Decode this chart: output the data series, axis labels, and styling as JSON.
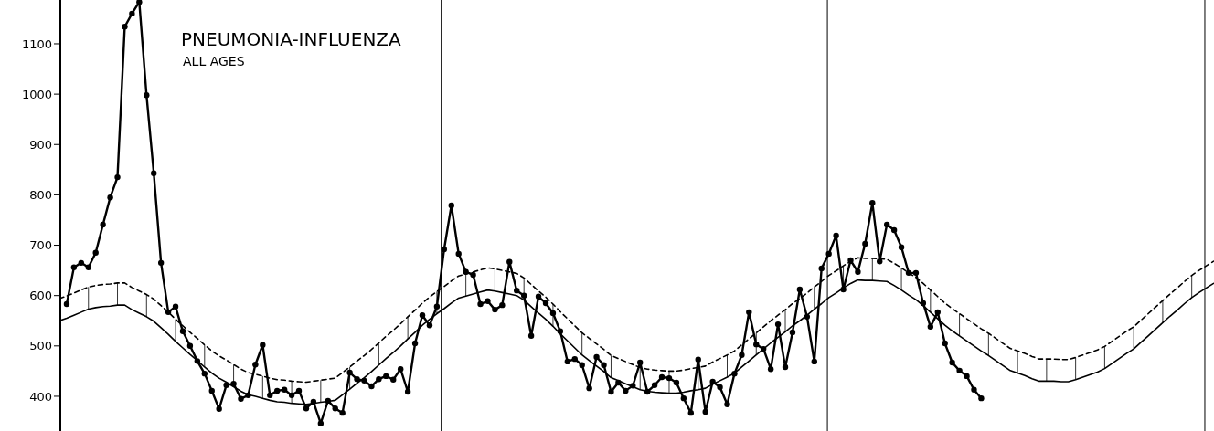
{
  "chart_data": {
    "type": "line",
    "title": "PNEUMONIA-INFLUENZA",
    "subtitle": "ALL AGES",
    "categories": [
      null,
      null,
      null,
      null,
      null,
      null,
      null,
      null,
      null,
      null,
      null,
      null,
      null,
      null,
      null,
      null,
      null,
      null,
      null,
      null,
      null,
      null,
      null,
      null,
      null,
      null,
      null,
      null,
      null,
      null,
      null,
      null,
      null,
      null,
      null,
      null,
      null,
      null,
      null,
      null,
      null,
      null,
      null,
      null,
      null,
      null,
      null,
      null,
      null,
      null,
      null,
      null,
      null,
      null,
      null,
      null,
      null,
      null,
      null,
      null,
      null,
      null,
      null,
      null,
      null,
      null,
      null,
      null,
      null,
      null,
      null,
      null,
      null,
      null,
      null,
      null,
      null,
      null,
      null,
      null,
      null,
      null,
      null,
      null,
      null,
      null,
      null,
      null,
      null,
      null,
      null,
      null,
      null,
      null,
      null,
      null,
      null,
      null,
      null,
      null,
      null,
      null,
      null,
      null,
      null,
      null,
      null,
      null,
      null,
      null,
      null,
      null,
      null,
      null,
      null,
      null,
      null,
      null,
      null,
      null,
      null,
      null,
      null,
      null,
      null,
      null,
      null,
      null,
      null,
      null,
      null,
      null,
      null,
      null,
      null,
      null,
      null,
      null,
      null,
      null,
      null,
      null,
      null,
      null,
      null,
      null,
      null,
      null,
      null,
      null,
      null,
      null,
      null,
      null,
      null,
      null,
      null,
      null,
      null,
      null
    ],
    "ylim": [
      331,
      1187
    ],
    "yticks": [
      400,
      500,
      600,
      700,
      800,
      900,
      1000,
      1100
    ],
    "tick_labels": "y",
    "grid": false,
    "series": [
      {
        "color": "#000000",
        "marker": "circle",
        "line_style": "solid",
        "values": [
          null,
          583,
          656,
          665,
          656,
          685,
          741,
          795,
          835,
          1134,
          1160,
          1183,
          998,
          843,
          665,
          567,
          578,
          529,
          500,
          470,
          445,
          411,
          375,
          422,
          425,
          395,
          402,
          463,
          502,
          402,
          411,
          413,
          402,
          411,
          376,
          389,
          346,
          391,
          376,
          367,
          447,
          434,
          431,
          420,
          434,
          440,
          433,
          454,
          409,
          505,
          561,
          541,
          578,
          692,
          779,
          683,
          647,
          641,
          583,
          589,
          572,
          581,
          667,
          610,
          600,
          520,
          598,
          585,
          565,
          529,
          469,
          474,
          462,
          416,
          478,
          462,
          409,
          427,
          411,
          421,
          467,
          409,
          422,
          438,
          436,
          427,
          396,
          367,
          473,
          369,
          429,
          418,
          384,
          445,
          482,
          567,
          503,
          494,
          454,
          543,
          458,
          527,
          612,
          558,
          469,
          654,
          683,
          719,
          612,
          670,
          647,
          703,
          784,
          668,
          741,
          730,
          696,
          645,
          645,
          585,
          538,
          567,
          505,
          467,
          451,
          440,
          413,
          396,
          null,
          null,
          null,
          null,
          null,
          null,
          null,
          null,
          null,
          null,
          null,
          null,
          null,
          null,
          null,
          null,
          null,
          null,
          null,
          null,
          null,
          null,
          null,
          null,
          null,
          null,
          null,
          null,
          null,
          null,
          null,
          null
        ]
      },
      {
        "color": "#000000",
        "marker": "none",
        "line_style": "solid",
        "values": [
          550,
          555,
          561,
          567,
          573,
          576,
          578,
          579,
          581,
          581,
          572,
          565,
          558,
          549,
          536,
          523,
          509,
          496,
          483,
          471,
          458,
          446,
          436,
          428,
          419,
          410,
          403,
          400,
          396,
          392,
          389,
          388,
          386,
          385,
          384,
          386,
          388,
          390,
          392,
          403,
          414,
          426,
          437,
          449,
          462,
          475,
          487,
          500,
          514,
          527,
          541,
          553,
          564,
          574,
          585,
          595,
          599,
          603,
          607,
          611,
          609,
          606,
          603,
          600,
          591,
          578,
          565,
          553,
          539,
          524,
          510,
          496,
          482,
          471,
          460,
          449,
          437,
          431,
          425,
          419,
          413,
          410,
          408,
          407,
          406,
          406,
          408,
          411,
          413,
          416,
          424,
          431,
          438,
          446,
          458,
          470,
          482,
          494,
          506,
          517,
          528,
          540,
          550,
          561,
          573,
          584,
          596,
          605,
          615,
          624,
          631,
          630,
          630,
          629,
          628,
          620,
          611,
          601,
          592,
          580,
          567,
          554,
          541,
          530,
          520,
          510,
          500,
          490,
          481,
          471,
          461,
          451,
          446,
          441,
          435,
          430,
          430,
          430,
          429,
          429,
          433,
          438,
          443,
          448,
          455,
          465,
          475,
          485,
          494,
          507,
          520,
          533,
          546,
          559,
          571,
          584,
          596,
          606,
          615,
          624
        ]
      },
      {
        "color": "#000000",
        "marker": "none",
        "line_style": "dashed",
        "values": [
          594,
          599,
          605,
          611,
          617,
          620,
          622,
          623,
          625,
          625,
          616,
          609,
          602,
          593,
          580,
          567,
          553,
          540,
          527,
          515,
          502,
          490,
          480,
          472,
          463,
          454,
          447,
          444,
          440,
          436,
          433,
          432,
          430,
          429,
          428,
          430,
          432,
          434,
          436,
          447,
          458,
          470,
          481,
          493,
          506,
          519,
          531,
          544,
          558,
          571,
          585,
          597,
          608,
          618,
          629,
          639,
          643,
          647,
          651,
          655,
          653,
          650,
          647,
          644,
          635,
          622,
          609,
          597,
          583,
          568,
          554,
          540,
          526,
          515,
          504,
          493,
          481,
          475,
          469,
          463,
          457,
          454,
          452,
          451,
          450,
          450,
          452,
          455,
          457,
          460,
          468,
          475,
          482,
          490,
          502,
          514,
          526,
          538,
          550,
          561,
          572,
          584,
          594,
          605,
          617,
          628,
          640,
          649,
          659,
          668,
          675,
          674,
          674,
          673,
          672,
          664,
          655,
          645,
          636,
          624,
          611,
          598,
          585,
          574,
          564,
          554,
          544,
          534,
          525,
          515,
          505,
          495,
          490,
          485,
          479,
          474,
          474,
          474,
          473,
          473,
          477,
          482,
          487,
          492,
          499,
          509,
          519,
          529,
          538,
          551,
          564,
          577,
          590,
          603,
          615,
          628,
          640,
          650,
          659,
          668
        ]
      }
    ]
  }
}
